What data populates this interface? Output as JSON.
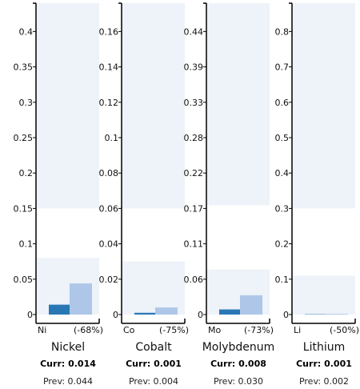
{
  "chart_data": [
    {
      "type": "bar",
      "symbol": "Ni",
      "name": "Nickel",
      "change": "(-68%)",
      "curr_text": "Curr: 0.014",
      "prev_text": "Prev: 0.044",
      "values": {
        "curr": 0.014,
        "prev": 0.044
      },
      "ylim": [
        0,
        0.44
      ],
      "yticks": [
        "0",
        "0.05",
        "0.1",
        "0.15",
        "0.2",
        "0.25",
        "0.3",
        "0.35",
        "0.4"
      ],
      "ytick_values": [
        0,
        0.05,
        0.1,
        0.15,
        0.2,
        0.25,
        0.3,
        0.35,
        0.4
      ],
      "bands": [
        [
          0,
          0.08
        ],
        [
          0.15,
          0.44
        ]
      ]
    },
    {
      "type": "bar",
      "symbol": "Co",
      "name": "Cobalt",
      "change": "(-75%)",
      "curr_text": "Curr: 0.001",
      "prev_text": "Prev: 0.004",
      "values": {
        "curr": 0.001,
        "prev": 0.004
      },
      "ylim": [
        0,
        0.176
      ],
      "yticks": [
        "0",
        "0.02",
        "0.04",
        "0.06",
        "0.08",
        "0.1",
        "0.12",
        "0.14",
        "0.16"
      ],
      "ytick_values": [
        0,
        0.02,
        0.04,
        0.06,
        0.08,
        0.1,
        0.12,
        0.14,
        0.16
      ],
      "bands": [
        [
          0,
          0.03
        ],
        [
          0.06,
          0.176
        ]
      ]
    },
    {
      "type": "bar",
      "symbol": "Mo",
      "name": "Molybdenum",
      "change": "(-73%)",
      "curr_text": "Curr: 0.008",
      "prev_text": "Prev: 0.030",
      "values": {
        "curr": 0.008,
        "prev": 0.03
      },
      "ylim": [
        0,
        0.484
      ],
      "yticks": [
        "0",
        "0.06",
        "0.11",
        "0.17",
        "0.22",
        "0.28",
        "0.33",
        "0.39",
        "0.44"
      ],
      "ytick_values": [
        0,
        0.055,
        0.11,
        0.165,
        0.22,
        0.275,
        0.33,
        0.385,
        0.44
      ],
      "bands": [
        [
          0,
          0.07
        ],
        [
          0.17,
          0.484
        ]
      ]
    },
    {
      "type": "bar",
      "symbol": "Li",
      "name": "Lithium",
      "change": "(-50%)",
      "curr_text": "Curr: 0.001",
      "prev_text": "Prev: 0.002",
      "values": {
        "curr": 0.001,
        "prev": 0.002
      },
      "ylim": [
        0,
        0.88
      ],
      "yticks": [
        "0",
        "0.1",
        "0.2",
        "0.3",
        "0.4",
        "0.5",
        "0.6",
        "0.7",
        "0.8"
      ],
      "ytick_values": [
        0,
        0.1,
        0.2,
        0.3,
        0.4,
        0.5,
        0.6,
        0.7,
        0.8
      ],
      "bands": [
        [
          0,
          0.11
        ],
        [
          0.3,
          0.88
        ]
      ]
    }
  ],
  "colors": {
    "curr_bar": "#2a77b6",
    "prev_bar": "#aec7e8",
    "band": "#eef2f9",
    "axis": "#000000"
  }
}
